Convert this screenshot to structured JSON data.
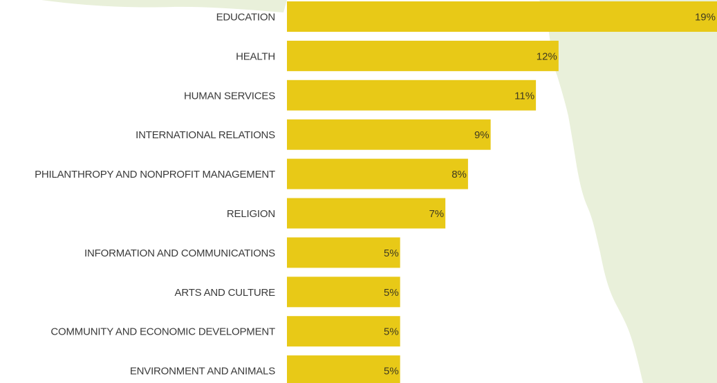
{
  "colors": {
    "bar": "#e8c917",
    "map_land": "#e9f0da",
    "map_edge": "#d4e0bd",
    "label_text": "#3a3a3a"
  },
  "chart_data": {
    "type": "bar",
    "orientation": "horizontal",
    "title": "",
    "xlabel": "",
    "ylabel": "",
    "xlim": [
      0,
      19
    ],
    "grid": false,
    "legend": "none",
    "categories": [
      "EDUCATION",
      "HEALTH",
      "HUMAN SERVICES",
      "INTERNATIONAL RELATIONS",
      "PHILANTHROPY AND NONPROFIT MANAGEMENT",
      "RELIGION",
      "INFORMATION AND COMMUNICATIONS",
      "ARTS AND CULTURE",
      "COMMUNITY AND ECONOMIC DEVELOPMENT",
      "ENVIRONMENT AND ANIMALS"
    ],
    "values": [
      19,
      12,
      11,
      9,
      8,
      7,
      5,
      5,
      5,
      5
    ],
    "value_labels": [
      "19%",
      "12%",
      "11%",
      "9%",
      "8%",
      "7%",
      "5%",
      "5%",
      "5%",
      "5%"
    ]
  }
}
